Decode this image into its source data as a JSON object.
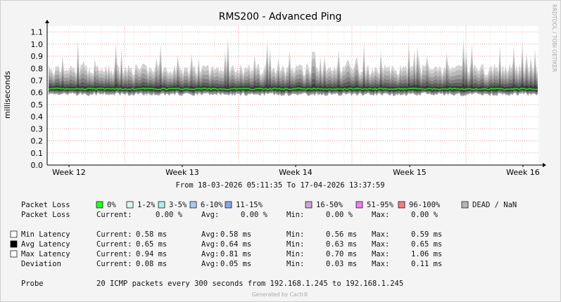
{
  "chart_data": {
    "type": "area",
    "title": "RMS200 - Advanced Ping",
    "ylabel": "milliseconds",
    "ylim": [
      0,
      1.15
    ],
    "yticks": [
      "0.0",
      "0.1",
      "0.2",
      "0.3",
      "0.4",
      "0.5",
      "0.6",
      "0.7",
      "0.8",
      "0.9",
      "1.0",
      "1.1"
    ],
    "xticks": [
      "Week 12",
      "Week 13",
      "Week 14",
      "Week 15",
      "Week 16"
    ],
    "x_range": [
      "18-03-2026 05:11:35",
      "17-04-2026 13:37:59"
    ],
    "series": [
      {
        "name": "Avg Latency",
        "color": "#22dd22",
        "current": 0.65,
        "avg": 0.64,
        "min": 0.63,
        "max": 0.65
      },
      {
        "name": "Min Latency",
        "color": "#ffffff",
        "current": 0.58,
        "avg": 0.58,
        "min": 0.56,
        "max": 0.59
      },
      {
        "name": "Max Latency",
        "color": "#ffffff",
        "current": 0.94,
        "avg": 0.81,
        "min": 0.7,
        "max": 1.06
      },
      {
        "name": "Deviation",
        "current": 0.08,
        "avg": 0.05,
        "min": 0.03,
        "max": 0.11
      }
    ],
    "grid": true,
    "watermark": "RRDTOOL / TOBI OETIKER",
    "credit": "Generated by Cacti®"
  },
  "range_text": "From 18-03-2026 05:11:35 To 17-04-2026 13:37:59",
  "legend": {
    "packet_loss_label": "Packet Loss",
    "loss_items": [
      {
        "label": "0%",
        "color": "#26ff26"
      },
      {
        "label": "1-2%",
        "color": "#dcf5f0"
      },
      {
        "label": "3-5%",
        "color": "#b4ebeb"
      },
      {
        "label": "6-10%",
        "color": "#aac8f0"
      },
      {
        "label": "11-15%",
        "color": "#8ca8e6"
      },
      {
        "label": "16-50%",
        "color": "#c8a8d2"
      },
      {
        "label": "51-95%",
        "color": "#f07ef0"
      },
      {
        "label": "96-100%",
        "color": "#f08080"
      },
      {
        "label": "DEAD / NaN",
        "color": "#b4b8b4"
      }
    ],
    "loss_stats": {
      "label": "Packet Loss",
      "current": "0.00 %",
      "avg": "0.00 %",
      "min": "0.00 %",
      "max": "0.00 %"
    },
    "rows": [
      {
        "label": "Min Latency",
        "swatch": "#ffffff",
        "current": "0.58 ms",
        "avg": "0.58 ms",
        "min": "0.56 ms",
        "max": "0.59 ms"
      },
      {
        "label": "Avg Latency",
        "swatch": "#000000",
        "current": "0.65 ms",
        "avg": "0.64 ms",
        "min": "0.63 ms",
        "max": "0.65 ms"
      },
      {
        "label": "Max Latency",
        "swatch": "#ffffff",
        "current": "0.94 ms",
        "avg": "0.81 ms",
        "min": "0.70 ms",
        "max": "1.06 ms"
      },
      {
        "label": "Deviation",
        "swatch": "",
        "current": "0.08 ms",
        "avg": "0.05 ms",
        "min": "0.03 ms",
        "max": "0.11 ms"
      }
    ],
    "stat_labels": {
      "current": "Current:",
      "avg": "Avg:",
      "min": "Min:",
      "max": "Max:"
    },
    "probe_label": "Probe",
    "probe_text": "20 ICMP packets every 300 seconds from 192.168.1.245 to 192.168.1.245"
  }
}
